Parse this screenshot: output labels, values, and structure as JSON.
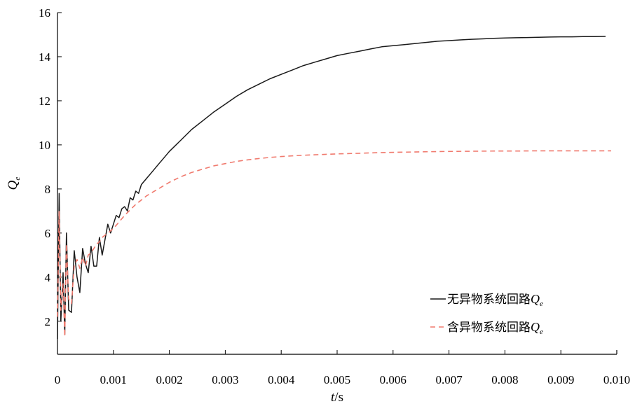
{
  "chart_data": {
    "type": "line",
    "xlabel": {
      "var": "t",
      "unit": "/s"
    },
    "ylabel": {
      "var": "Q",
      "sub": "e"
    },
    "xlim": [
      0,
      0.01
    ],
    "ylim": [
      0.5,
      16
    ],
    "xticks": [
      0,
      0.001,
      0.002,
      0.003,
      0.004,
      0.005,
      0.006,
      0.007,
      0.008,
      0.009,
      0.01
    ],
    "xtick_labels": [
      "0",
      "0.001",
      "0.002",
      "0.003",
      "0.004",
      "0.005",
      "0.006",
      "0.007",
      "0.008",
      "0.009",
      "0.010"
    ],
    "yticks": [
      2,
      4,
      6,
      8,
      10,
      12,
      14,
      16
    ],
    "ytick_labels": [
      "2",
      "4",
      "6",
      "8",
      "10",
      "12",
      "14",
      "16"
    ],
    "grid": false,
    "legend_position": "bottom-right",
    "series": [
      {
        "name": "无异物系统回路",
        "name_symbol": "Q",
        "name_sub": "e",
        "color": "#1a1a1a",
        "style": "solid",
        "x": [
          0,
          3e-05,
          6e-05,
          0.0001,
          0.00013,
          0.00016,
          0.0002,
          0.00025,
          0.0003,
          0.00035,
          0.0004,
          0.00045,
          0.0005,
          0.00055,
          0.0006,
          0.00065,
          0.0007,
          0.00075,
          0.0008,
          0.00085,
          0.0009,
          0.00095,
          0.001,
          0.00105,
          0.0011,
          0.00115,
          0.0012,
          0.00125,
          0.0013,
          0.00135,
          0.0014,
          0.00145,
          0.0015,
          0.0016,
          0.0017,
          0.0018,
          0.0019,
          0.002,
          0.0022,
          0.0024,
          0.0026,
          0.0028,
          0.003,
          0.0032,
          0.0034,
          0.0036,
          0.0038,
          0.004,
          0.0042,
          0.0044,
          0.0046,
          0.0048,
          0.005,
          0.0052,
          0.0054,
          0.0056,
          0.0058,
          0.006,
          0.0062,
          0.0064,
          0.0066,
          0.0068,
          0.007,
          0.0072,
          0.0074,
          0.0076,
          0.0078,
          0.008,
          0.0082,
          0.0084,
          0.0086,
          0.0088,
          0.009,
          0.0092,
          0.0094,
          0.0096,
          0.0098
        ],
        "y": [
          1.2,
          7.8,
          2.0,
          4.2,
          1.4,
          6.0,
          2.5,
          2.4,
          5.2,
          4.0,
          3.3,
          5.3,
          4.6,
          4.2,
          5.4,
          4.5,
          4.5,
          5.8,
          5.0,
          5.7,
          6.4,
          6.0,
          6.4,
          6.8,
          6.7,
          7.1,
          7.2,
          7.0,
          7.6,
          7.5,
          7.9,
          7.8,
          8.2,
          8.5,
          8.8,
          9.1,
          9.4,
          9.7,
          10.2,
          10.7,
          11.1,
          11.5,
          11.85,
          12.2,
          12.5,
          12.75,
          13.0,
          13.2,
          13.4,
          13.6,
          13.75,
          13.9,
          14.05,
          14.15,
          14.25,
          14.35,
          14.45,
          14.5,
          14.55,
          14.6,
          14.65,
          14.7,
          14.73,
          14.76,
          14.79,
          14.81,
          14.83,
          14.85,
          14.86,
          14.87,
          14.88,
          14.89,
          14.9,
          14.9,
          14.91,
          14.91,
          14.92
        ]
      },
      {
        "name": "含异物系统回路",
        "name_symbol": "Q",
        "name_sub": "e",
        "color": "#f07a6e",
        "style": "dashed",
        "x": [
          0,
          3e-05,
          6e-05,
          0.0001,
          0.00013,
          0.00016,
          0.0002,
          0.00025,
          0.0003,
          0.00035,
          0.0004,
          0.00045,
          0.0005,
          0.00055,
          0.0006,
          0.00065,
          0.0007,
          0.00075,
          0.0008,
          0.0009,
          0.001,
          0.0011,
          0.0012,
          0.0013,
          0.0014,
          0.0015,
          0.0016,
          0.0018,
          0.002,
          0.0022,
          0.0024,
          0.0026,
          0.0028,
          0.003,
          0.0032,
          0.0034,
          0.0036,
          0.0038,
          0.004,
          0.0042,
          0.0044,
          0.0046,
          0.0048,
          0.005,
          0.0054,
          0.0058,
          0.0062,
          0.0066,
          0.007,
          0.0074,
          0.0078,
          0.0082,
          0.0086,
          0.009,
          0.0094,
          0.0099
        ],
        "y": [
          2.2,
          7.0,
          2.5,
          3.7,
          1.3,
          5.5,
          3.0,
          2.8,
          4.5,
          4.8,
          4.4,
          4.9,
          4.5,
          5.0,
          5.1,
          5.3,
          5.5,
          5.6,
          5.8,
          6.0,
          6.2,
          6.5,
          6.8,
          7.05,
          7.3,
          7.5,
          7.7,
          8.0,
          8.3,
          8.55,
          8.75,
          8.9,
          9.05,
          9.15,
          9.25,
          9.32,
          9.38,
          9.43,
          9.47,
          9.5,
          9.53,
          9.55,
          9.57,
          9.59,
          9.62,
          9.65,
          9.67,
          9.69,
          9.7,
          9.71,
          9.72,
          9.72,
          9.73,
          9.73,
          9.73,
          9.73
        ]
      }
    ]
  }
}
